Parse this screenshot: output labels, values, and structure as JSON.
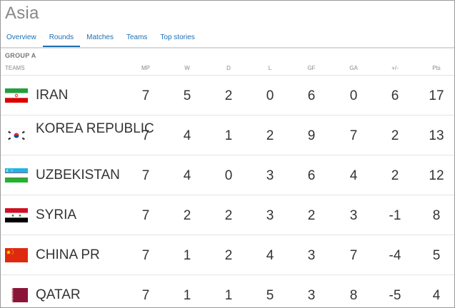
{
  "page": {
    "title": "Asia"
  },
  "tabs": [
    {
      "label": "Overview",
      "active": false
    },
    {
      "label": "Rounds",
      "active": true
    },
    {
      "label": "Matches",
      "active": false
    },
    {
      "label": "Teams",
      "active": false
    },
    {
      "label": "Top stories",
      "active": false
    }
  ],
  "group": {
    "label": "GROUP A"
  },
  "columns": [
    "TEAMS",
    "MP",
    "W",
    "D",
    "L",
    "GF",
    "GA",
    "+/-",
    "Pts"
  ],
  "teams": [
    {
      "name": "IRAN",
      "flag": "iran-flag",
      "stats": [
        "7",
        "5",
        "2",
        "0",
        "6",
        "0",
        "6",
        "17"
      ]
    },
    {
      "name": "KOREA REPUBLIC",
      "flag": "korea-republic-flag",
      "stats": [
        "7",
        "4",
        "1",
        "2",
        "9",
        "7",
        "2",
        "13"
      ]
    },
    {
      "name": "UZBEKISTAN",
      "flag": "uzbekistan-flag",
      "stats": [
        "7",
        "4",
        "0",
        "3",
        "6",
        "4",
        "2",
        "12"
      ]
    },
    {
      "name": "SYRIA",
      "flag": "syria-flag",
      "stats": [
        "7",
        "2",
        "2",
        "3",
        "2",
        "3",
        "-1",
        "8"
      ]
    },
    {
      "name": "CHINA PR",
      "flag": "china-pr-flag",
      "stats": [
        "7",
        "1",
        "2",
        "4",
        "3",
        "7",
        "-4",
        "5"
      ]
    },
    {
      "name": "QATAR",
      "flag": "qatar-flag",
      "stats": [
        "7",
        "1",
        "1",
        "5",
        "3",
        "8",
        "-5",
        "4"
      ]
    }
  ],
  "colors": {
    "link": "#1b6fb5",
    "title": "#888888",
    "text": "#333333"
  }
}
